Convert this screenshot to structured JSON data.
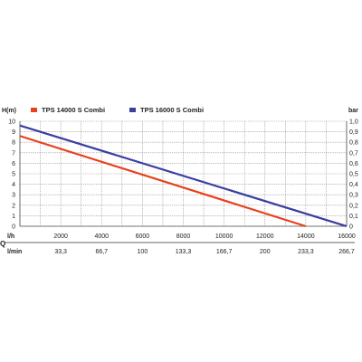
{
  "chart_data": {
    "type": "line",
    "y_left_unit": "H(m)",
    "y_right_unit": "bar",
    "x_axis_symbol": "Q",
    "x_primary_unit": "l/h",
    "x_secondary_unit": "l/min",
    "xlim": [
      0,
      16000
    ],
    "ylim": [
      0,
      10
    ],
    "y_right_lim": [
      0,
      1.0
    ],
    "x_ticks": [
      "2000",
      "4000",
      "6000",
      "8000",
      "10000",
      "12000",
      "14000",
      "16000"
    ],
    "x_tick_values": [
      2000,
      4000,
      6000,
      8000,
      10000,
      12000,
      14000,
      16000
    ],
    "x_secondary_ticks": [
      "33,3",
      "66,7",
      "100",
      "133,3",
      "166,7",
      "200",
      "233,3",
      "266,7"
    ],
    "y_left_ticks": [
      "0",
      "1",
      "2",
      "3",
      "4",
      "5",
      "6",
      "7",
      "8",
      "9",
      "10"
    ],
    "y_left_tick_values": [
      0,
      1,
      2,
      3,
      4,
      5,
      6,
      7,
      8,
      9,
      10
    ],
    "y_right_ticks": [
      "0",
      "0,1",
      "0,2",
      "0,3",
      "0,4",
      "0,5",
      "0,6",
      "0,7",
      "0,8",
      "0,9",
      "1,0"
    ],
    "grid": true,
    "legend_position": "top",
    "series": [
      {
        "name": "TPS 14000 S Combi",
        "color": "#e8401c",
        "x": [
          0,
          14000
        ],
        "y": [
          8.6,
          0
        ]
      },
      {
        "name": "TPS 16000 S Combi",
        "color": "#3a3ea0",
        "x": [
          0,
          16000
        ],
        "y": [
          9.6,
          0
        ]
      }
    ]
  }
}
